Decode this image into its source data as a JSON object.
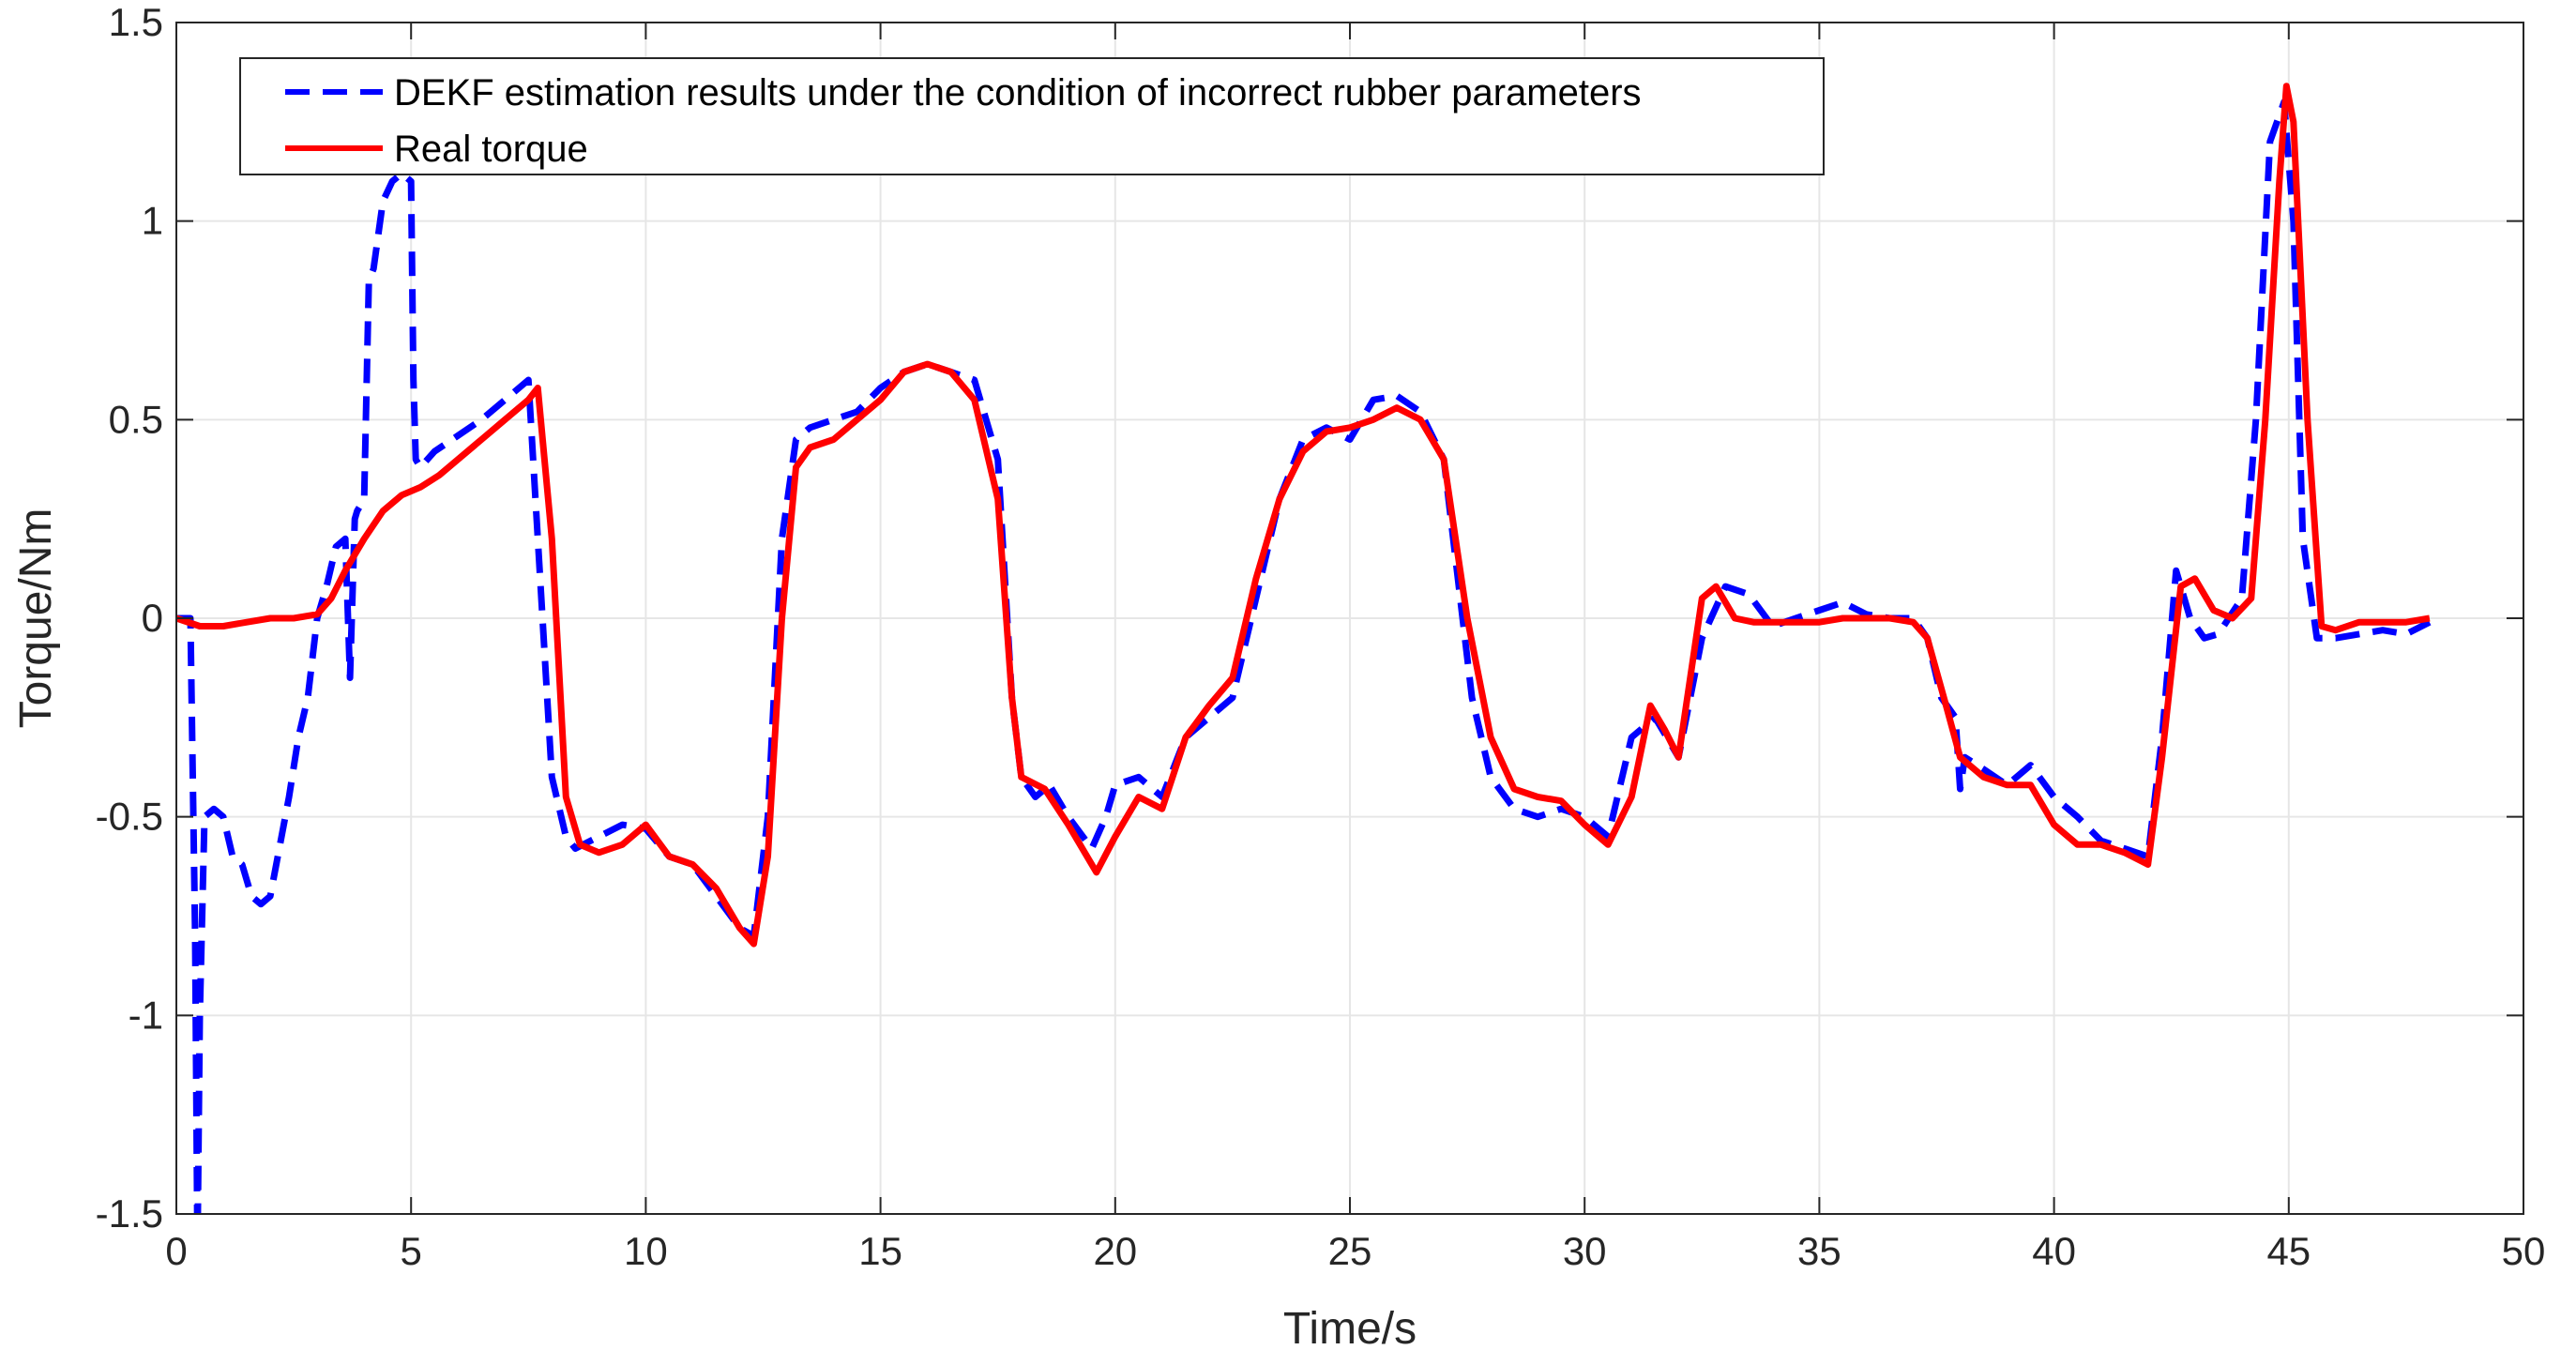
{
  "chart_data": {
    "type": "line",
    "title": "",
    "xlabel": "Time/s",
    "ylabel": "Torque/Nm",
    "xlim": [
      0,
      50
    ],
    "ylim": [
      -1.5,
      1.5
    ],
    "xticks": [
      0,
      5,
      10,
      15,
      20,
      25,
      30,
      35,
      40,
      45,
      50
    ],
    "xtick_labels": [
      "0",
      "5",
      "10",
      "15",
      "20",
      "25",
      "30",
      "35",
      "40",
      "45",
      "50"
    ],
    "yticks": [
      -1.5,
      -1,
      -0.5,
      0,
      0.5,
      1,
      1.5
    ],
    "ytick_labels": [
      "-1.5",
      "-1",
      "-0.5",
      "0",
      "0.5",
      "1",
      "1.5"
    ],
    "grid": true,
    "legend_position": "top-left",
    "series": [
      {
        "name": "DEKF estimation results under the condition of incorrect rubber parameters",
        "color": "#0000FF",
        "style": "dashed",
        "x": [
          0,
          0.3,
          0.4,
          0.45,
          0.5,
          0.6,
          0.8,
          1.0,
          1.2,
          1.4,
          1.6,
          1.8,
          2.0,
          2.4,
          2.6,
          2.8,
          3.0,
          3.2,
          3.4,
          3.6,
          3.7,
          3.8,
          3.85,
          3.9,
          4.0,
          4.1,
          4.2,
          4.4,
          4.6,
          4.8,
          5.0,
          5.05,
          5.1,
          5.2,
          5.5,
          6.0,
          6.5,
          7.0,
          7.5,
          7.7,
          8.0,
          8.3,
          8.5,
          9.0,
          9.5,
          10.0,
          10.5,
          11.0,
          11.5,
          12.0,
          12.3,
          12.6,
          12.9,
          13.2,
          13.5,
          14.0,
          14.5,
          15.0,
          15.5,
          16.0,
          16.5,
          17.0,
          17.5,
          17.8,
          18.0,
          18.3,
          18.6,
          19.0,
          19.5,
          19.8,
          20.0,
          20.5,
          21.0,
          21.5,
          22.0,
          22.5,
          23.0,
          23.5,
          24.0,
          24.5,
          25.0,
          25.5,
          26.0,
          26.5,
          27.0,
          27.3,
          27.6,
          28.0,
          28.5,
          29.0,
          29.5,
          30.0,
          30.5,
          31.0,
          31.5,
          32.0,
          32.5,
          33.0,
          33.5,
          34.0,
          34.5,
          35.0,
          35.5,
          36.0,
          36.5,
          37.0,
          37.3,
          37.6,
          37.9,
          38.0,
          38.1,
          38.5,
          39.0,
          39.5,
          40.0,
          40.5,
          41.0,
          41.5,
          42.0,
          42.3,
          42.6,
          42.9,
          43.2,
          43.5,
          44.0,
          44.3,
          44.6,
          44.9,
          45.1,
          45.3,
          45.6,
          46.0,
          46.5,
          47.0,
          47.5,
          48.0
        ],
        "y": [
          0.0,
          0.0,
          -0.8,
          -1.6,
          -1.0,
          -0.5,
          -0.48,
          -0.5,
          -0.6,
          -0.62,
          -0.7,
          -0.72,
          -0.7,
          -0.45,
          -0.3,
          -0.2,
          0.0,
          0.08,
          0.18,
          0.2,
          -0.15,
          0.25,
          0.27,
          0.28,
          0.3,
          0.85,
          0.88,
          1.05,
          1.1,
          1.12,
          1.1,
          0.6,
          0.4,
          0.38,
          0.42,
          0.46,
          0.5,
          0.55,
          0.6,
          0.2,
          -0.4,
          -0.55,
          -0.58,
          -0.55,
          -0.52,
          -0.53,
          -0.6,
          -0.62,
          -0.7,
          -0.78,
          -0.8,
          -0.5,
          0.2,
          0.45,
          0.48,
          0.5,
          0.52,
          0.58,
          0.62,
          0.64,
          0.62,
          0.6,
          0.4,
          -0.2,
          -0.4,
          -0.45,
          -0.42,
          -0.5,
          -0.58,
          -0.5,
          -0.42,
          -0.4,
          -0.45,
          -0.3,
          -0.25,
          -0.2,
          0.05,
          0.3,
          0.45,
          0.48,
          0.45,
          0.55,
          0.56,
          0.52,
          0.4,
          0.1,
          -0.2,
          -0.4,
          -0.48,
          -0.5,
          -0.48,
          -0.5,
          -0.55,
          -0.3,
          -0.25,
          -0.35,
          -0.05,
          0.08,
          0.06,
          -0.02,
          0.0,
          0.02,
          0.04,
          0.01,
          0.0,
          0.0,
          -0.05,
          -0.2,
          -0.25,
          -0.43,
          -0.35,
          -0.38,
          -0.42,
          -0.37,
          -0.45,
          -0.5,
          -0.56,
          -0.58,
          -0.6,
          -0.3,
          0.12,
          0.0,
          -0.05,
          -0.04,
          0.05,
          0.5,
          1.2,
          1.3,
          1.0,
          0.2,
          -0.05,
          -0.05,
          -0.04,
          -0.03,
          -0.04,
          -0.01
        ]
      },
      {
        "name": "Real torque",
        "color": "#FF0000",
        "style": "solid",
        "x": [
          0,
          0.5,
          1.0,
          1.5,
          2.0,
          2.5,
          3.0,
          3.3,
          3.6,
          4.0,
          4.4,
          4.8,
          5.2,
          5.6,
          6.0,
          6.5,
          7.0,
          7.5,
          7.7,
          8.0,
          8.3,
          8.6,
          9.0,
          9.5,
          10.0,
          10.5,
          11.0,
          11.5,
          12.0,
          12.3,
          12.6,
          12.9,
          13.2,
          13.5,
          14.0,
          14.5,
          15.0,
          15.5,
          16.0,
          16.5,
          17.0,
          17.5,
          17.8,
          18.0,
          18.5,
          19.0,
          19.6,
          20.0,
          20.5,
          21.0,
          21.5,
          22.0,
          22.5,
          23.0,
          23.5,
          24.0,
          24.5,
          25.0,
          25.5,
          26.0,
          26.5,
          27.0,
          27.5,
          28.0,
          28.5,
          29.0,
          29.5,
          30.0,
          30.5,
          31.0,
          31.4,
          31.7,
          32.0,
          32.5,
          32.8,
          33.2,
          33.6,
          34.0,
          34.5,
          35.0,
          35.5,
          36.0,
          36.5,
          37.0,
          37.3,
          37.7,
          38.0,
          38.5,
          39.0,
          39.5,
          40.0,
          40.5,
          41.0,
          41.5,
          42.0,
          42.3,
          42.7,
          43.0,
          43.4,
          43.8,
          44.2,
          44.5,
          44.8,
          44.95,
          45.1,
          45.4,
          45.7,
          46.0,
          46.5,
          47.0,
          47.5,
          48.0
        ],
        "y": [
          0.0,
          -0.02,
          -0.02,
          -0.01,
          0.0,
          0.0,
          0.01,
          0.05,
          0.12,
          0.2,
          0.27,
          0.31,
          0.33,
          0.36,
          0.4,
          0.45,
          0.5,
          0.55,
          0.58,
          0.2,
          -0.45,
          -0.57,
          -0.59,
          -0.57,
          -0.52,
          -0.6,
          -0.62,
          -0.68,
          -0.78,
          -0.82,
          -0.6,
          0.0,
          0.38,
          0.43,
          0.45,
          0.5,
          0.55,
          0.62,
          0.64,
          0.62,
          0.55,
          0.3,
          -0.2,
          -0.4,
          -0.43,
          -0.52,
          -0.64,
          -0.55,
          -0.45,
          -0.48,
          -0.3,
          -0.22,
          -0.15,
          0.1,
          0.3,
          0.42,
          0.47,
          0.48,
          0.5,
          0.53,
          0.5,
          0.4,
          0.0,
          -0.3,
          -0.43,
          -0.45,
          -0.46,
          -0.52,
          -0.57,
          -0.45,
          -0.22,
          -0.28,
          -0.35,
          0.05,
          0.08,
          0.0,
          -0.01,
          -0.01,
          -0.01,
          -0.01,
          0.0,
          0.0,
          0.0,
          -0.01,
          -0.05,
          -0.22,
          -0.35,
          -0.4,
          -0.42,
          -0.42,
          -0.52,
          -0.57,
          -0.57,
          -0.59,
          -0.62,
          -0.35,
          0.08,
          0.1,
          0.02,
          0.0,
          0.05,
          0.5,
          1.1,
          1.34,
          1.25,
          0.5,
          -0.02,
          -0.03,
          -0.01,
          -0.01,
          -0.01,
          0.0
        ]
      }
    ]
  }
}
